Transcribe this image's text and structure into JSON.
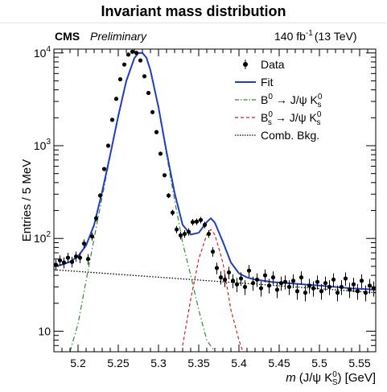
{
  "title": "Invariant mass distribution",
  "chart_data": {
    "type": "scatter",
    "experiment": "CMS",
    "status": "Preliminary",
    "luminosity": "140 fb",
    "luminosity_exp": "-1",
    "energy": "(13 TeV)",
    "xlabel_prefix": "m",
    "xlabel_main": "(J/ψ K",
    "xlabel_sub": "S",
    "xlabel_sup": "0",
    "xlabel_suffix": ") [GeV]",
    "ylabel": "Entries / 5 MeV",
    "xlim": [
      5.17,
      5.57
    ],
    "ylim": [
      6,
      11000
    ],
    "yscale": "log",
    "xticks": [
      5.2,
      5.25,
      5.3,
      5.35,
      5.4,
      5.45,
      5.5,
      5.55
    ],
    "xtick_labels": [
      "5.2",
      "5.25",
      "5.3",
      "5.35",
      "5.4",
      "5.45",
      "5.5",
      "5.55"
    ],
    "yticks": [
      {
        "value": 10,
        "base": "10",
        "exp": ""
      },
      {
        "value": 100,
        "base": "10",
        "exp": "2"
      },
      {
        "value": 1000,
        "base": "10",
        "exp": "3"
      },
      {
        "value": 10000,
        "base": "10",
        "exp": "4"
      }
    ],
    "legend": [
      {
        "label": "Data",
        "style": "marker",
        "color": "#000000"
      },
      {
        "label": "Fit",
        "style": "solid",
        "color": "#1f3fbf"
      },
      {
        "label": "B",
        "sup": "0",
        "rest": "→ J/ψ K",
        "rsub": "s",
        "rsup": "0",
        "style": "dashdot",
        "color": "#2e8b2e"
      },
      {
        "label": "B",
        "sup": "0",
        "sub": "s",
        "rest": "→ J/ψ K",
        "rsub": "s",
        "rsup": "0",
        "style": "dashed",
        "color": "#d42020"
      },
      {
        "label": "Comb. Bkg.",
        "style": "dotted",
        "color": "#000000"
      }
    ],
    "data": {
      "x": [
        5.1725,
        5.1775,
        5.1825,
        5.1875,
        5.1925,
        5.1975,
        5.2025,
        5.2075,
        5.2125,
        5.2175,
        5.2225,
        5.2275,
        5.2325,
        5.2375,
        5.2425,
        5.2475,
        5.2525,
        5.2575,
        5.2625,
        5.2675,
        5.2725,
        5.2775,
        5.2825,
        5.2875,
        5.2925,
        5.2975,
        5.3025,
        5.3075,
        5.3125,
        5.3175,
        5.3225,
        5.3275,
        5.3325,
        5.3375,
        5.3425,
        5.3475,
        5.3525,
        5.3575,
        5.3625,
        5.3675,
        5.3725,
        5.3775,
        5.3825,
        5.3875,
        5.3925,
        5.3975,
        5.4025,
        5.4075,
        5.4125,
        5.4175,
        5.4225,
        5.4275,
        5.4325,
        5.4375,
        5.4425,
        5.4475,
        5.4525,
        5.4575,
        5.4625,
        5.4675,
        5.4725,
        5.4775,
        5.4825,
        5.4875,
        5.4925,
        5.4975,
        5.5025,
        5.5075,
        5.5125,
        5.5175,
        5.5225,
        5.5275,
        5.5325,
        5.5375,
        5.5425,
        5.5475,
        5.5525,
        5.5575,
        5.5625,
        5.5675
      ],
      "y": [
        52,
        58,
        55,
        62,
        56,
        64,
        62,
        88,
        60,
        105,
        165,
        290,
        560,
        1000,
        1900,
        3200,
        5200,
        7500,
        9600,
        10300,
        10000,
        8300,
        5600,
        3700,
        2300,
        1400,
        820,
        480,
        290,
        190,
        125,
        108,
        112,
        118,
        150,
        152,
        158,
        140,
        112,
        72,
        48,
        38,
        36,
        43,
        35,
        32,
        37,
        30,
        45,
        33,
        36,
        29,
        40,
        31,
        38,
        28,
        33,
        34,
        30,
        35,
        27,
        38,
        26,
        31,
        29,
        34,
        27,
        33,
        30,
        36,
        26,
        30,
        37,
        28,
        32,
        27,
        35,
        26,
        31,
        29
      ]
    },
    "fit_total": {
      "x": [
        5.17,
        5.18,
        5.19,
        5.2,
        5.21,
        5.22,
        5.23,
        5.24,
        5.25,
        5.26,
        5.27,
        5.275,
        5.28,
        5.285,
        5.29,
        5.3,
        5.31,
        5.32,
        5.33,
        5.34,
        5.35,
        5.36,
        5.365,
        5.37,
        5.38,
        5.39,
        5.4,
        5.41,
        5.42,
        5.44,
        5.46,
        5.48,
        5.5,
        5.52,
        5.54,
        5.57
      ],
      "y": [
        50,
        52,
        56,
        64,
        84,
        140,
        320,
        800,
        2100,
        5000,
        8800,
        10000,
        10000,
        8900,
        6500,
        2600,
        860,
        310,
        140,
        110,
        115,
        150,
        165,
        148,
        92,
        55,
        42,
        38,
        36,
        34,
        33,
        32,
        31,
        30,
        29,
        28
      ]
    },
    "b0_signal": {
      "x": [
        5.19,
        5.2,
        5.21,
        5.22,
        5.23,
        5.24,
        5.25,
        5.26,
        5.27,
        5.275,
        5.28,
        5.285,
        5.29,
        5.3,
        5.31,
        5.32,
        5.33,
        5.34,
        5.35,
        5.36,
        5.37
      ],
      "y": [
        6,
        12,
        35,
        100,
        280,
        780,
        2000,
        4900,
        8700,
        9900,
        9900,
        8800,
        6400,
        2500,
        800,
        260,
        90,
        40,
        17,
        8,
        6
      ]
    },
    "bs_signal": {
      "x": [
        5.33,
        5.34,
        5.35,
        5.36,
        5.365,
        5.37,
        5.38,
        5.39,
        5.4,
        5.405
      ],
      "y": [
        7,
        22,
        60,
        110,
        125,
        110,
        55,
        17,
        8,
        6
      ]
    },
    "comb_bkg": {
      "x": [
        5.17,
        5.57
      ],
      "y": [
        46,
        26
      ]
    }
  }
}
